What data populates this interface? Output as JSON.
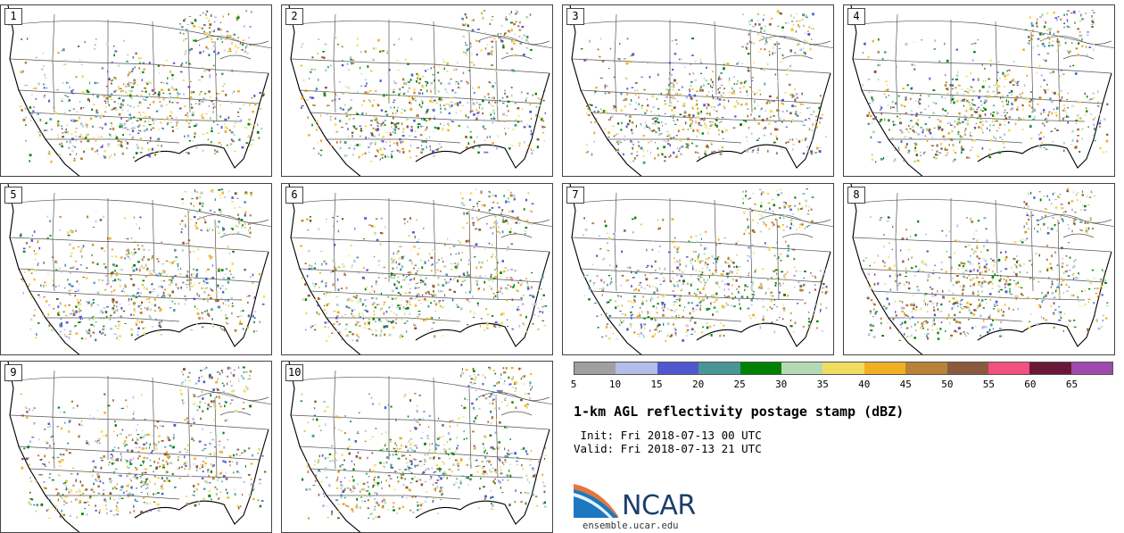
{
  "panels": [
    {
      "label": "1",
      "seed": 11
    },
    {
      "label": "2",
      "seed": 23
    },
    {
      "label": "3",
      "seed": 37
    },
    {
      "label": "4",
      "seed": 41
    },
    {
      "label": "5",
      "seed": 53
    },
    {
      "label": "6",
      "seed": 67
    },
    {
      "label": "7",
      "seed": 71
    },
    {
      "label": "8",
      "seed": 89
    },
    {
      "label": "9",
      "seed": 97
    },
    {
      "label": "10",
      "seed": 103
    }
  ],
  "colorbar": {
    "colors": [
      "#a0a0a0",
      "#b4bce8",
      "#5058d0",
      "#4a9696",
      "#008200",
      "#b4dab4",
      "#f2dc60",
      "#f0b022",
      "#b88238",
      "#8a5a3e",
      "#f25080",
      "#6a1838",
      "#a04ab0"
    ],
    "ticks": [
      "5",
      "10",
      "15",
      "20",
      "25",
      "30",
      "35",
      "40",
      "45",
      "50",
      "55",
      "60",
      "65"
    ]
  },
  "title": "1-km AGL reflectivity postage stamp (dBZ)",
  "init": " Init: Fri 2018-07-13 00 UTC",
  "valid": "Valid: Fri 2018-07-13 21 UTC",
  "logo": {
    "text": "NCAR",
    "url": "ensemble.ucar.edu"
  }
}
